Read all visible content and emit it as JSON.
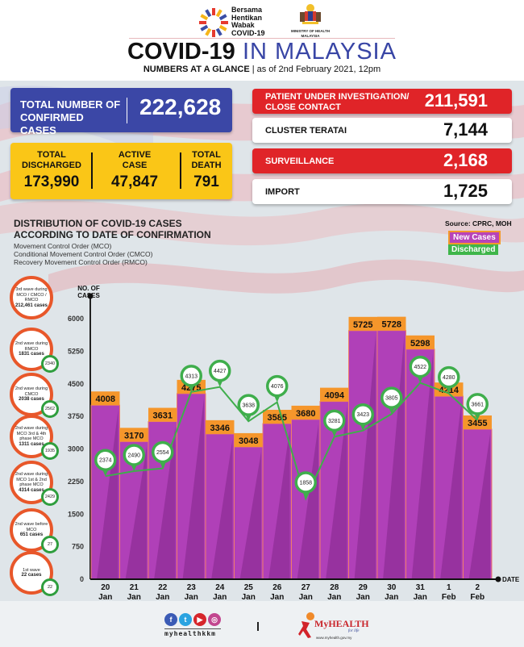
{
  "header": {
    "campaign_logo_text": "Bersama Hentikan Wabak COVID-19",
    "ministry_logo_text": "MINISTRY OF HEALTH MALAYSIA",
    "title_bold": "COVID-19",
    "title_light": "IN MALAYSIA",
    "subtitle_bold": "NUMBERS AT A GLANCE",
    "subtitle_rest": "| as of 2nd February 2021, 12pm"
  },
  "totals": {
    "confirmed_label": "TOTAL NUMBER OF CONFIRMED CASES",
    "confirmed_value": "222,628",
    "discharged_label": "TOTAL DISCHARGED",
    "discharged_value": "173,990",
    "active_label": "ACTIVE CASE",
    "active_value": "47,847",
    "death_label": "TOTAL DEATH",
    "death_value": "791"
  },
  "categories": [
    {
      "label": "PATIENT UNDER INVESTIGATION/ CLOSE CONTACT",
      "value": "211,591",
      "style": "red"
    },
    {
      "label": "CLUSTER TERATAI",
      "value": "7,144",
      "style": "white"
    },
    {
      "label": "SURVEILLANCE",
      "value": "2,168",
      "style": "red"
    },
    {
      "label": "IMPORT",
      "value": "1,725",
      "style": "white"
    }
  ],
  "section": {
    "title_line1": "DISTRIBUTION OF COVID-19 CASES",
    "title_line2": "ACCORDING TO DATE OF CONFIRMATION",
    "mco": "Movement Control Order (MCO)",
    "cmco": "Conditional Movement Control Order (CMCO)",
    "rmco": "Recovery Movement Control Order (RMCO)",
    "source": "Source: CPRC, MOH"
  },
  "waves": [
    {
      "text": "3rd wave during MCO / CMCO / RMCO",
      "count": "212,461",
      "unit": "cases",
      "discharged": ""
    },
    {
      "text": "2nd wave during RMCO",
      "count": "1831",
      "unit": "cases",
      "discharged": "2340"
    },
    {
      "text": "2nd wave during CMCO",
      "count": "2038",
      "unit": "cases",
      "discharged": "2562"
    },
    {
      "text": "2nd wave during MCO 3rd & 4th phase MCO",
      "count": "1311",
      "unit": "cases",
      "discharged": "1935"
    },
    {
      "text": "2nd wave during MCO 1st & 2nd phase MCO",
      "count": "4314",
      "unit": "cases",
      "discharged": "2429"
    },
    {
      "text": "2nd wave before MCO",
      "count": "651",
      "unit": "cases",
      "discharged": "27"
    },
    {
      "text": "1st wave",
      "count": "22",
      "unit": "cases",
      "discharged": "22"
    }
  ],
  "footer": {
    "social_handle": "myhealthkkm",
    "brand_name": "MyHEALTH",
    "brand_tagline": "for life",
    "brand_url": "www.myhealth.gov.my",
    "social_icons": [
      "facebook-icon",
      "twitter-icon",
      "youtube-icon",
      "instagram-icon"
    ]
  },
  "colors": {
    "bar": "#b040b8",
    "bar_shade": "#93309a",
    "bar_label_bg": "#f5962b",
    "discharged": "#3fae4c",
    "confirmed_card": "#3b47a6",
    "summary_card": "#fac617",
    "red_card": "#e02428"
  },
  "chart_data": {
    "type": "bar",
    "title": "DISTRIBUTION OF COVID-19 CASES ACCORDING TO DATE OF CONFIRMATION",
    "ylabel": "NO. OF CASES",
    "xlabel": "DATE",
    "ylim": [
      0,
      6000
    ],
    "yticks": [
      0,
      750,
      1500,
      2250,
      3000,
      3750,
      4500,
      5250,
      6000
    ],
    "categories": [
      [
        "20",
        "Jan"
      ],
      [
        "21",
        "Jan"
      ],
      [
        "22",
        "Jan"
      ],
      [
        "23",
        "Jan"
      ],
      [
        "24",
        "Jan"
      ],
      [
        "25",
        "Jan"
      ],
      [
        "26",
        "Jan"
      ],
      [
        "27",
        "Jan"
      ],
      [
        "28",
        "Jan"
      ],
      [
        "29",
        "Jan"
      ],
      [
        "30",
        "Jan"
      ],
      [
        "31",
        "Jan"
      ],
      [
        "1",
        "Feb"
      ],
      [
        "2",
        "Feb"
      ]
    ],
    "legend": [
      "New Cases",
      "Discharged"
    ],
    "legend_position": "top-right",
    "series": [
      {
        "name": "New Cases",
        "kind": "bar",
        "values": [
          4008,
          3170,
          3631,
          4275,
          3346,
          3048,
          3585,
          3680,
          4094,
          5725,
          5728,
          5298,
          4214,
          3455
        ]
      },
      {
        "name": "Discharged",
        "kind": "line",
        "values": [
          2374,
          2490,
          2554,
          4313,
          4427,
          3638,
          4076,
          1858,
          3281,
          3423,
          3805,
          4522,
          4280,
          3661
        ]
      }
    ]
  }
}
